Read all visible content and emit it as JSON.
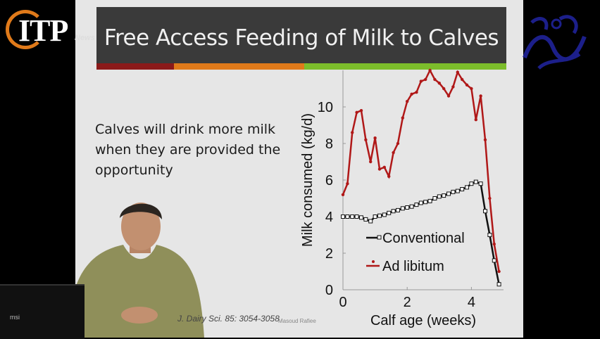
{
  "logo": {
    "itp": "ITP",
    "news": "News"
  },
  "slide": {
    "title": "Free Access Feeding of Milk to Calves",
    "bullet": "Calves will drink more milk when they are provided the opportunity",
    "citation": "J. Dairy Sci. 85: 3054-3058",
    "watermark": "Masoud Rafiee"
  },
  "laptop": {
    "brand": "msi"
  },
  "colors": {
    "adlib": "#b01818",
    "conventional": "#111111",
    "stripe": [
      "#8b1a1a",
      "#e07a1a",
      "#7cbd2b"
    ]
  },
  "chart_data": {
    "type": "line",
    "xlabel": "Calf age (weeks)",
    "ylabel": "Milk consumed (kg/d)",
    "xlim": [
      0,
      5
    ],
    "ylim": [
      0,
      12
    ],
    "xticks": [
      0,
      2,
      4
    ],
    "yticks": [
      0,
      2,
      4,
      6,
      8,
      10
    ],
    "legend_position": "bottom-left",
    "series": [
      {
        "name": "Conventional",
        "x": [
          0,
          0.14,
          0.29,
          0.43,
          0.57,
          0.71,
          0.86,
          1.0,
          1.14,
          1.29,
          1.43,
          1.57,
          1.71,
          1.86,
          2.0,
          2.14,
          2.29,
          2.43,
          2.57,
          2.71,
          2.86,
          3.0,
          3.14,
          3.29,
          3.43,
          3.57,
          3.71,
          3.86,
          4.0,
          4.14,
          4.29,
          4.43,
          4.57,
          4.71,
          4.86
        ],
        "y": [
          4.0,
          4.0,
          4.0,
          4.0,
          3.95,
          3.85,
          3.75,
          4.0,
          4.05,
          4.1,
          4.2,
          4.3,
          4.35,
          4.45,
          4.5,
          4.55,
          4.65,
          4.75,
          4.8,
          4.85,
          5.0,
          5.1,
          5.15,
          5.25,
          5.35,
          5.4,
          5.5,
          5.6,
          5.8,
          5.9,
          5.8,
          4.3,
          3.0,
          1.6,
          0.3
        ]
      },
      {
        "name": "Ad libitum",
        "x": [
          0,
          0.14,
          0.29,
          0.43,
          0.57,
          0.71,
          0.86,
          1.0,
          1.14,
          1.29,
          1.43,
          1.57,
          1.71,
          1.86,
          2.0,
          2.14,
          2.29,
          2.43,
          2.57,
          2.71,
          2.86,
          3.0,
          3.14,
          3.29,
          3.43,
          3.57,
          3.71,
          3.86,
          4.0,
          4.14,
          4.29,
          4.43,
          4.57,
          4.71,
          4.86
        ],
        "y": [
          5.2,
          5.8,
          8.6,
          9.7,
          9.8,
          8.2,
          7.0,
          8.3,
          6.6,
          6.7,
          6.2,
          7.5,
          8.0,
          9.4,
          10.3,
          10.7,
          10.8,
          11.4,
          11.5,
          12.0,
          11.5,
          11.3,
          11.0,
          10.6,
          11.1,
          11.9,
          11.5,
          11.2,
          11.0,
          9.3,
          10.6,
          8.2,
          5.0,
          2.5,
          1.0
        ]
      }
    ]
  }
}
